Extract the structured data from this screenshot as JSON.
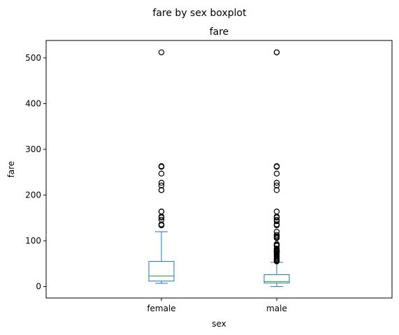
{
  "chart_data": {
    "type": "box",
    "suptitle": "fare by sex boxplot",
    "title": "fare",
    "xlabel": "sex",
    "ylabel": "fare",
    "ylim": [
      -25,
      538
    ],
    "yticks": [
      0,
      100,
      200,
      300,
      400,
      500
    ],
    "grid": false,
    "categories": [
      "female",
      "male"
    ],
    "boxes": [
      {
        "category": "female",
        "whisker_low": 7,
        "q1": 12,
        "median": 23,
        "q3": 55,
        "whisker_high": 120,
        "outliers": [
          512,
          263,
          263,
          262,
          262,
          247,
          227,
          221,
          211,
          211,
          164,
          164,
          153,
          151,
          146,
          136,
          135,
          134,
          134
        ]
      },
      {
        "category": "male",
        "whisker_low": 0,
        "q1": 8,
        "median": 11,
        "q3": 26,
        "whisker_high": 53,
        "outliers": [
          512,
          512,
          263,
          263,
          262,
          247,
          227,
          221,
          211,
          164,
          153,
          151,
          146,
          143,
          136,
          135,
          134,
          120,
          113,
          110,
          108,
          106,
          93,
          91,
          90,
          89,
          83,
          82,
          80,
          79,
          78,
          77,
          77,
          76,
          75,
          73,
          71,
          69,
          66,
          63,
          61,
          59,
          57,
          56,
          55
        ]
      }
    ],
    "colors": {
      "box": "#1f77b4",
      "median": "#2ca02c",
      "outlier": "#000000"
    }
  }
}
